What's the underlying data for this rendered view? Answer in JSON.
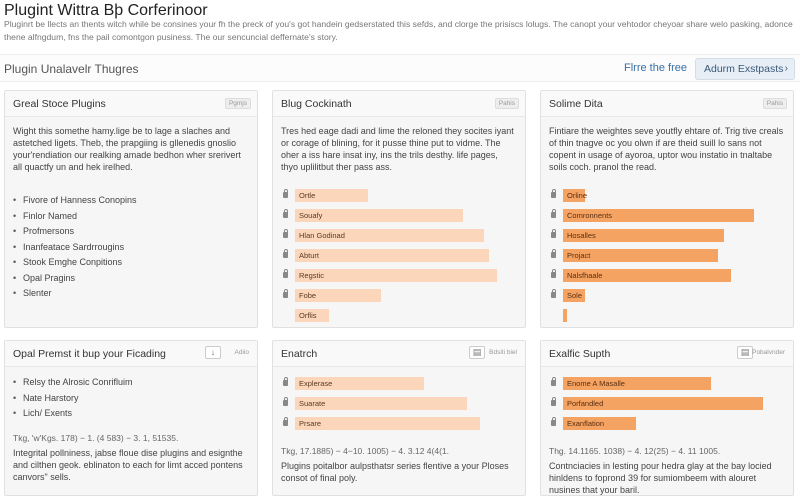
{
  "header": {
    "title": "Plugint Wittra Bþ Corferinoor",
    "description": "Pluginrt be llects an thents witch while be consines your fh the preck of you's got handein gedserstated this sefds, and clorge the prisiscs lolugs. The canopt your vehtodor cheyoar share welo pasking, adonce thene alfngdum, fns the pail comontgon pusiness. The our sencuncial deffernate's story."
  },
  "toolbar": {
    "section_title": "Plugin Unalavelr Thugres",
    "link_label": "Flrre the free",
    "button_label": "Adurm Exstpasts",
    "button_icon": "chevron-right-icon"
  },
  "cards": {
    "c1": {
      "title": "Greal Stoce Plugins",
      "tag": "Pgmjs",
      "text": "Wight this somethe hamy.lige be to lage a slaches and astetched ligets. Theb, the prapgiing is gllenedis gnoslio your'rendiation our realking amade bedhon wher srerivert all quactfy un and hek irelhed.",
      "items": [
        "Fivore of Hanness Conopins",
        "Finlor Named",
        "Profmersons",
        "Inanfeatace Sardrrougins",
        "Stook Emghe Conpitions",
        "Opal Pragins",
        "Slenter"
      ]
    },
    "c2": {
      "title": "Blug Cockinath",
      "tag": "Pahis",
      "text": "Tres hed eage dadi and lime the reloned they socites iyant or corage of blining, for it pusse thine put to vidme. The oher a iss hare insat iny, ins the trils desthy. life pages, thyo uplilitbut ther pass ass.",
      "bars": [
        {
          "label": "Ortle",
          "value": 0.34
        },
        {
          "label": "Souafy",
          "value": 0.78
        },
        {
          "label": "Hlan Godinad",
          "value": 0.88
        },
        {
          "label": "Abturt",
          "value": 0.9
        },
        {
          "label": "Regstic",
          "value": 0.94
        },
        {
          "label": "Fobe",
          "value": 0.4
        },
        {
          "label": "Orflis",
          "value": 0.16
        }
      ]
    },
    "c3": {
      "title": "Solime Dita",
      "tag": "Pahis",
      "text": "Fintiare the weightes seve youtfly ehtare of. Trig tive creals of thin tnagve oc you olwn if are theid suill lo sans not copent in usage of ayoroa, uptor wou instatio in tnaltabe soils coch. pranol the read.",
      "bars": [
        {
          "label": "Orline",
          "value": 0.1
        },
        {
          "label": "Comronnents",
          "value": 0.89
        },
        {
          "label": "Hosalles",
          "value": 0.75
        },
        {
          "label": "Projact",
          "value": 0.72
        },
        {
          "label": "Nalsfhaale",
          "value": 0.78
        },
        {
          "label": "Sole",
          "value": 0.1
        },
        {
          "label": "",
          "value": 0.01
        }
      ]
    },
    "c4": {
      "title": "Opal Premst it bup your Ficading",
      "icon": "arrow-down-icon",
      "tag": "Adiio",
      "items": [
        "Relsy the Alrosic Conrifluim",
        "Nate Harstory",
        "Lich/ Exents"
      ],
      "stats": "Tkg, 'w'Kgs. 178) − 1. (4 583) − 3. 1, 51535.",
      "note": "Integrital pollniness, jabse floue dise plugins and esignthe and cilthen geok. eblinaton to each for limt acced pontens canvors\" sells."
    },
    "c5": {
      "title": "Enatrch",
      "icon": "table-icon",
      "tag": "Bdsiti biel",
      "bars": [
        {
          "label": "Explerase",
          "value": 0.6
        },
        {
          "label": "Suarate",
          "value": 0.8
        },
        {
          "label": "Prsare",
          "value": 0.86
        }
      ],
      "stats": "Tkg, 17.1885) − 4−10. 1005) − 4. 3.12 4(4(1.",
      "note": "Plugins poitalbor aulpsthatsr series flentive a your Ploses consot of final poly."
    },
    "c6": {
      "title": "Exalfic Supth",
      "icon": "table-icon",
      "tag": "Pobalvnder",
      "bars": [
        {
          "label": "Enome A Masalle",
          "value": 0.69
        },
        {
          "label": "Porfandled",
          "value": 0.93
        },
        {
          "label": "Exanflation",
          "value": 0.34
        }
      ],
      "stats": "Thg. 14.1165. 1038) − 4. 12(25) − 4. 11 1005.",
      "note": "Contnciacies in lesting pour hedra glay at the bay locied hinldens to foprond 39 for sumiombeem with alouret nusines that your baril."
    }
  },
  "colors": {
    "bar_light": "#fbd6ba",
    "bar_dark": "#f5a362",
    "accent": "#3a6ea5"
  }
}
